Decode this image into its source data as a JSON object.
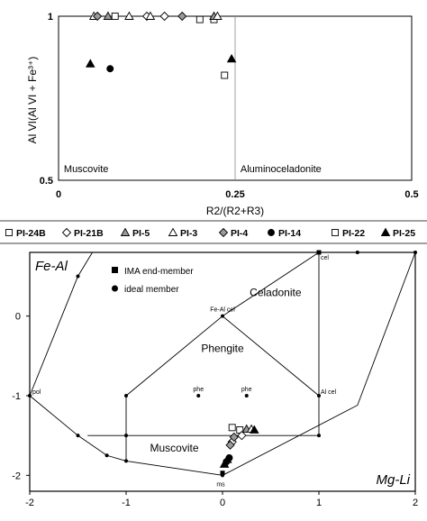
{
  "chart_data": [
    {
      "type": "scatter",
      "title": "",
      "xlabel": "R2/(R2+R3)",
      "ylabel": "Al VI(Al VI + Fe³⁺)",
      "xlim": [
        0,
        0.5
      ],
      "ylim": [
        0.5,
        1
      ],
      "xticks": [
        "0",
        "0.25",
        "0.5"
      ],
      "yticks": [
        "0.5",
        "1"
      ],
      "divider_x": 0.25,
      "regions": [
        {
          "label": "Muscovite",
          "x": 0.005,
          "y": 0.535
        },
        {
          "label": "Aluminoceladonite",
          "x": 0.255,
          "y": 0.535
        }
      ],
      "series": [
        {
          "name": "PI-24B",
          "marker": "square-open",
          "points": [
            [
              0.08,
              1.0
            ],
            [
              0.22,
              0.99
            ]
          ]
        },
        {
          "name": "PI-21B",
          "marker": "diamond-open",
          "points": [
            [
              0.125,
              1.0
            ],
            [
              0.15,
              1.0
            ]
          ]
        },
        {
          "name": "PI-5",
          "marker": "triangle-gray",
          "points": [
            [
              0.07,
              1.0
            ],
            [
              0.22,
              1.0
            ]
          ]
        },
        {
          "name": "PI-3",
          "marker": "triangle-open",
          "points": [
            [
              0.05,
              1.0
            ],
            [
              0.1,
              1.0
            ],
            [
              0.13,
              1.0
            ],
            [
              0.225,
              1.0
            ]
          ]
        },
        {
          "name": "PI-4",
          "marker": "diamond-gray",
          "points": [
            [
              0.055,
              1.0
            ],
            [
              0.175,
              1.0
            ]
          ]
        },
        {
          "name": "PI-14",
          "marker": "circle-filled",
          "points": [
            [
              0.073,
              0.84
            ]
          ]
        },
        {
          "name": "PI-22",
          "marker": "square-open",
          "points": [
            [
              0.2,
              0.99
            ],
            [
              0.235,
              0.82
            ]
          ]
        },
        {
          "name": "PI-25",
          "marker": "triangle-filled",
          "points": [
            [
              0.045,
              0.855
            ],
            [
              0.245,
              0.87
            ]
          ]
        }
      ]
    },
    {
      "type": "scatter",
      "title": "",
      "xlabel": "Mg-Li",
      "ylabel": "Fe-Al",
      "xlim": [
        -2,
        2
      ],
      "ylim": [
        -2.2,
        0.8
      ],
      "xticks": [
        "-2",
        "-1",
        "0",
        "1",
        "2"
      ],
      "yticks": [
        "-2",
        "-1",
        "0"
      ],
      "grid": false,
      "legend": [
        {
          "label": "IMA end-member",
          "marker": "square-filled"
        },
        {
          "label": "ideal member",
          "marker": "circle-filled"
        }
      ],
      "field_labels": [
        {
          "label": "Celadonite",
          "x": 0.55,
          "y": 0.25
        },
        {
          "label": "Phengite",
          "x": 0.0,
          "y": -0.45
        },
        {
          "label": "Muscovite",
          "x": -0.5,
          "y": -1.7
        }
      ],
      "point_labels": [
        {
          "label": "cel",
          "x": 1.0,
          "y": 0.8
        },
        {
          "label": "Fe-Al cel",
          "x": 0.0,
          "y": 0.0
        },
        {
          "label": "phe",
          "x": -0.25,
          "y": -1.0
        },
        {
          "label": "phe",
          "x": 0.25,
          "y": -1.0
        },
        {
          "label": "Al cel",
          "x": 1.0,
          "y": -1.0
        },
        {
          "label": "pol",
          "x": -2.0,
          "y": -1.0
        },
        {
          "label": "ms",
          "x": 0.0,
          "y": -2.0
        }
      ],
      "ima_end_members": [
        [
          1.0,
          0.8
        ],
        [
          0.0,
          -1.97
        ]
      ],
      "ideal_members": [
        [
          -1.5,
          0.5
        ],
        [
          -2.0,
          -1.0
        ],
        [
          -1.5,
          -1.5
        ],
        [
          -1.2,
          -1.75
        ],
        [
          -1.0,
          -1.5
        ],
        [
          -1.0,
          -1.82
        ],
        [
          -1.0,
          -1.0
        ],
        [
          0.0,
          0.0
        ],
        [
          -0.25,
          -1.0
        ],
        [
          0.25,
          -1.0
        ],
        [
          1.0,
          -1.0
        ],
        [
          1.0,
          -1.5
        ],
        [
          0.0,
          -2.0
        ],
        [
          1.4,
          0.8
        ],
        [
          2.0,
          0.8
        ]
      ],
      "series": [
        {
          "name": "PI-24B",
          "marker": "square-open",
          "points": [
            [
              0.18,
              -1.43
            ]
          ]
        },
        {
          "name": "PI-21B",
          "marker": "diamond-open",
          "points": [
            [
              0.2,
              -1.5
            ],
            [
              0.1,
              -1.58
            ]
          ]
        },
        {
          "name": "PI-5",
          "marker": "triangle-gray",
          "points": [
            [
              0.25,
              -1.42
            ]
          ]
        },
        {
          "name": "PI-3",
          "marker": "triangle-open",
          "points": [
            [
              0.3,
              -1.42
            ]
          ]
        },
        {
          "name": "PI-4",
          "marker": "diamond-gray",
          "points": [
            [
              0.12,
              -1.52
            ],
            [
              0.08,
              -1.62
            ]
          ]
        },
        {
          "name": "PI-14",
          "marker": "circle-filled",
          "points": [
            [
              0.07,
              -1.78
            ],
            [
              0.04,
              -1.83
            ]
          ]
        },
        {
          "name": "PI-22",
          "marker": "square-open",
          "points": [
            [
              0.1,
              -1.4
            ]
          ]
        },
        {
          "name": "PI-25",
          "marker": "triangle-filled",
          "points": [
            [
              0.33,
              -1.43
            ],
            [
              0.02,
              -1.86
            ],
            [
              0.05,
              -1.8
            ]
          ]
        }
      ]
    }
  ],
  "colors": {
    "gray_fill": "#9a9a9a",
    "axis": "#000000",
    "divider": "#888888"
  }
}
